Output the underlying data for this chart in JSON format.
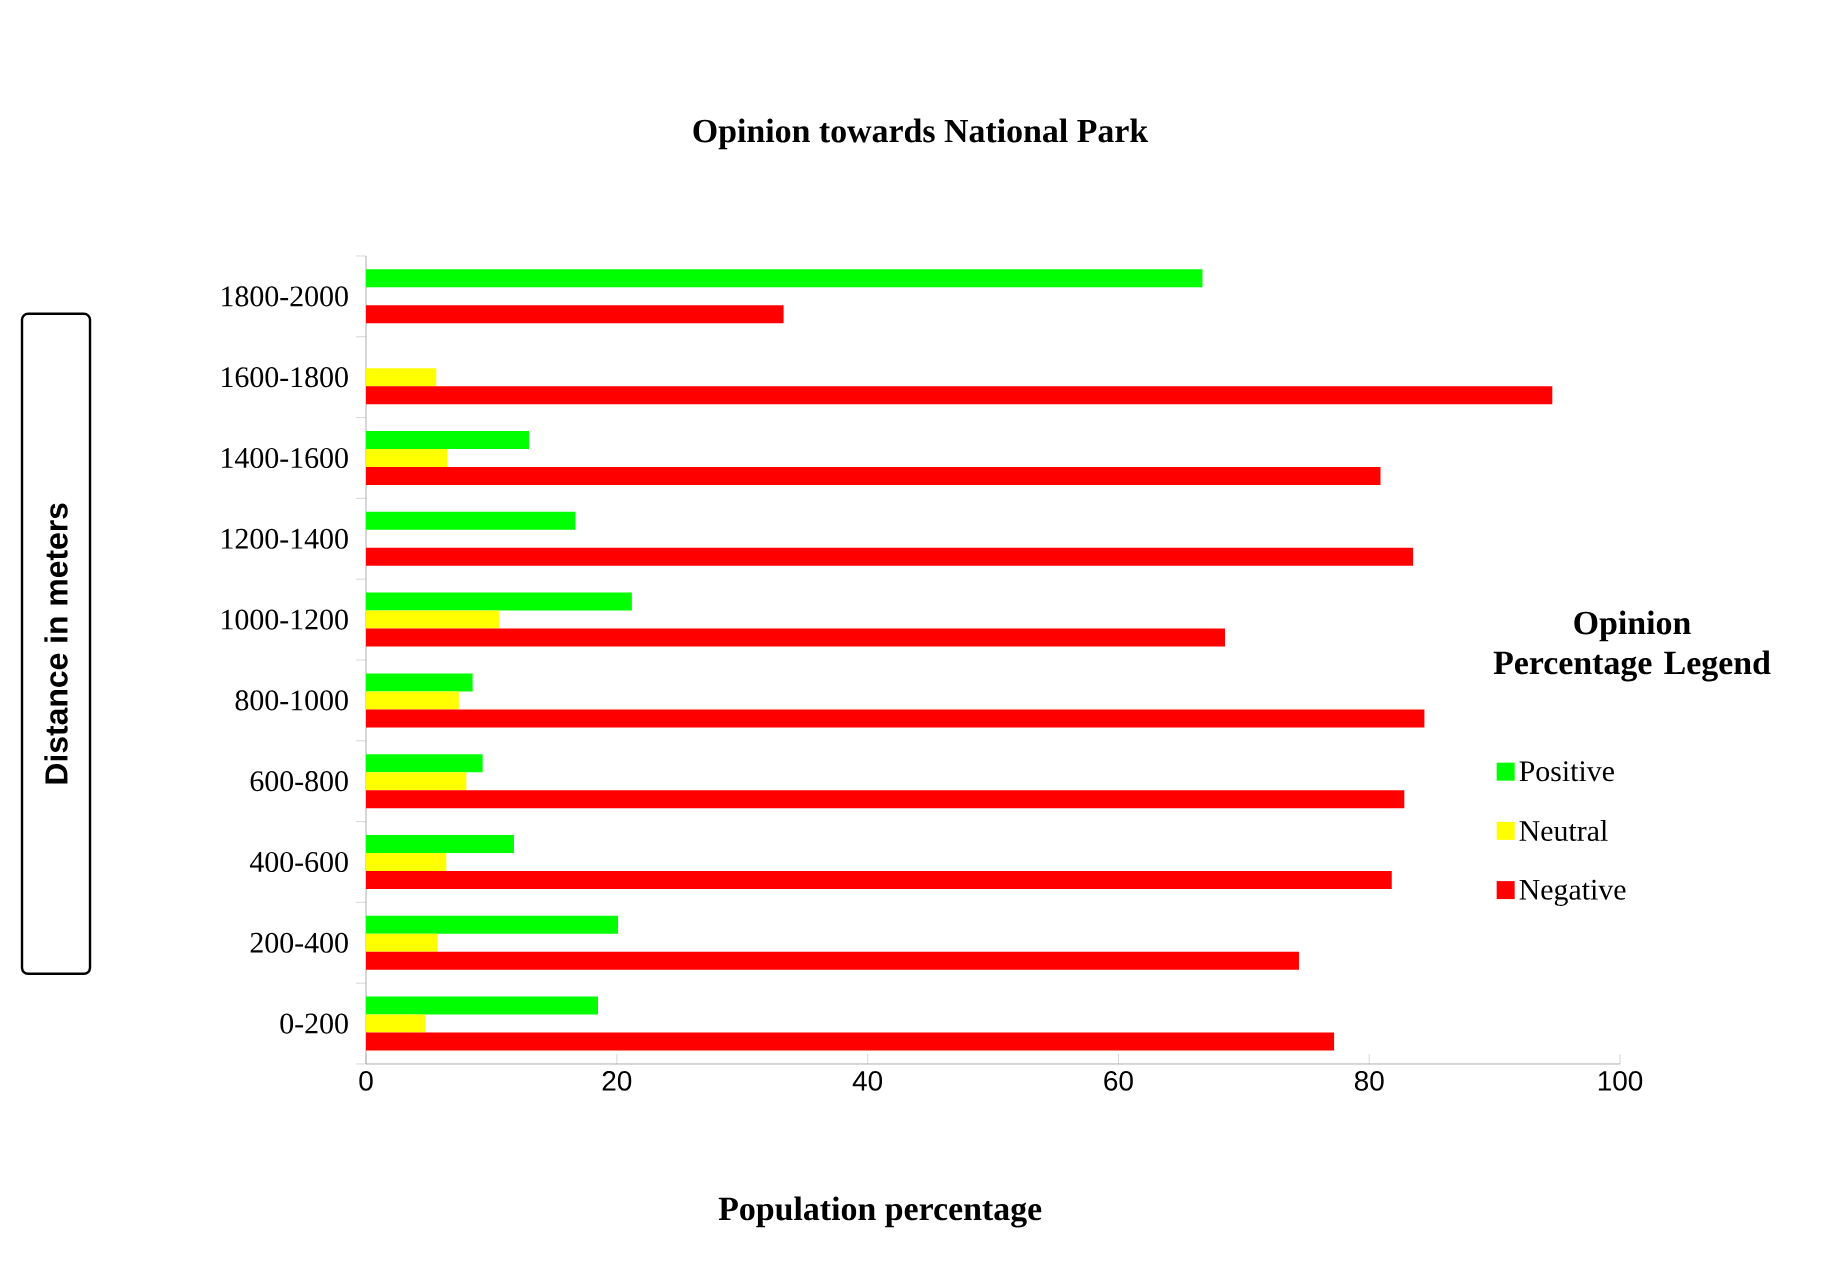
{
  "chart_data": {
    "type": "bar",
    "orientation": "horizontal",
    "title": "Opinion towards National Park",
    "xlabel": "Population percentage",
    "ylabel": "Distance in meters",
    "legend_title": "Opinion Percentage Legend",
    "legend": "right",
    "grid": false,
    "categories": [
      "1800-2000",
      "1600-1800",
      "1400-1600",
      "1200-1400",
      "1000-1200",
      "800-1000",
      "600-800",
      "400-600",
      "200-400",
      "0-200"
    ],
    "series": [
      {
        "name": "Positive",
        "color": "#00ff00",
        "values": [
          66.7,
          0,
          13.0,
          16.7,
          21.2,
          8.5,
          9.3,
          11.8,
          20.1,
          18.5
        ]
      },
      {
        "name": "Neutral",
        "color": "#ffff00",
        "values": [
          0,
          5.6,
          6.5,
          0,
          10.6,
          7.4,
          8.0,
          6.4,
          5.7,
          4.7
        ]
      },
      {
        "name": "Negative",
        "color": "#ff0000",
        "values": [
          33.3,
          94.6,
          80.9,
          83.5,
          68.5,
          84.4,
          82.8,
          81.8,
          74.4,
          77.2
        ]
      }
    ],
    "xlim": [
      0,
      100
    ],
    "xticks": [
      0,
      20,
      40,
      60,
      80,
      100
    ]
  }
}
